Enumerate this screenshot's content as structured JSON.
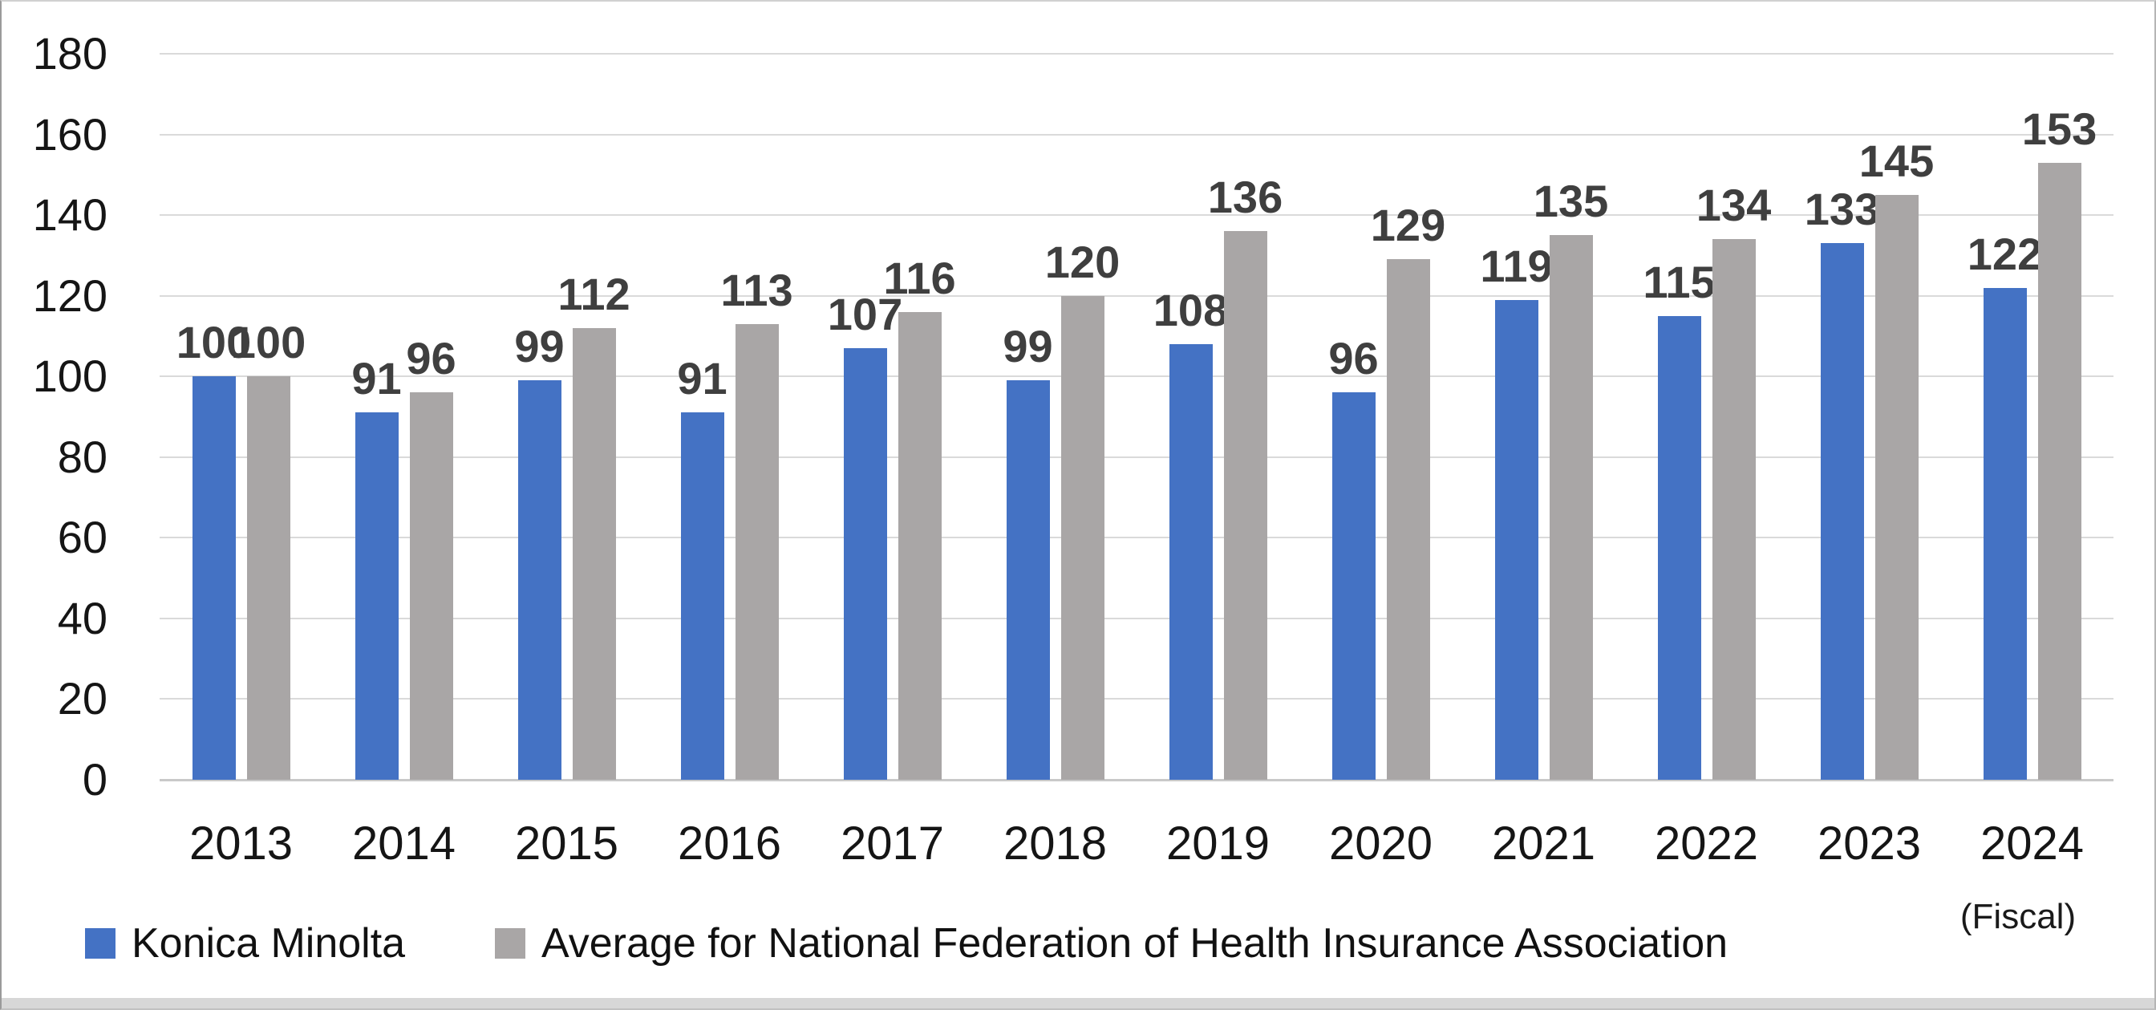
{
  "chart_data": {
    "type": "bar",
    "title": "",
    "categories": [
      "2013",
      "2014",
      "2015",
      "2016",
      "2017",
      "2018",
      "2019",
      "2020",
      "2021",
      "2022",
      "2023",
      "2024"
    ],
    "series": [
      {
        "name": "Konica Minolta",
        "color": "#4472C4",
        "values": [
          100,
          91,
          99,
          91,
          107,
          99,
          108,
          96,
          119,
          115,
          133,
          122
        ]
      },
      {
        "name": "Average for National Federation of Health Insurance Association",
        "color": "#A9A6A6",
        "values": [
          100,
          96,
          112,
          113,
          116,
          120,
          136,
          129,
          135,
          134,
          145,
          153
        ]
      }
    ],
    "ylim": [
      0,
      180
    ],
    "yticks": [
      0,
      20,
      40,
      60,
      80,
      100,
      120,
      140,
      160,
      180
    ],
    "grid": true,
    "value_labels_shown": true,
    "legend_position": "bottom-left",
    "axis_note": "(Fiscal)",
    "colors": {
      "value_label": "#3F3F3F",
      "axis_label": "#151515",
      "gridline": "#DADADA",
      "axis_line": "#C9C9C9",
      "bottom_strip": "#D7D7D7"
    }
  }
}
